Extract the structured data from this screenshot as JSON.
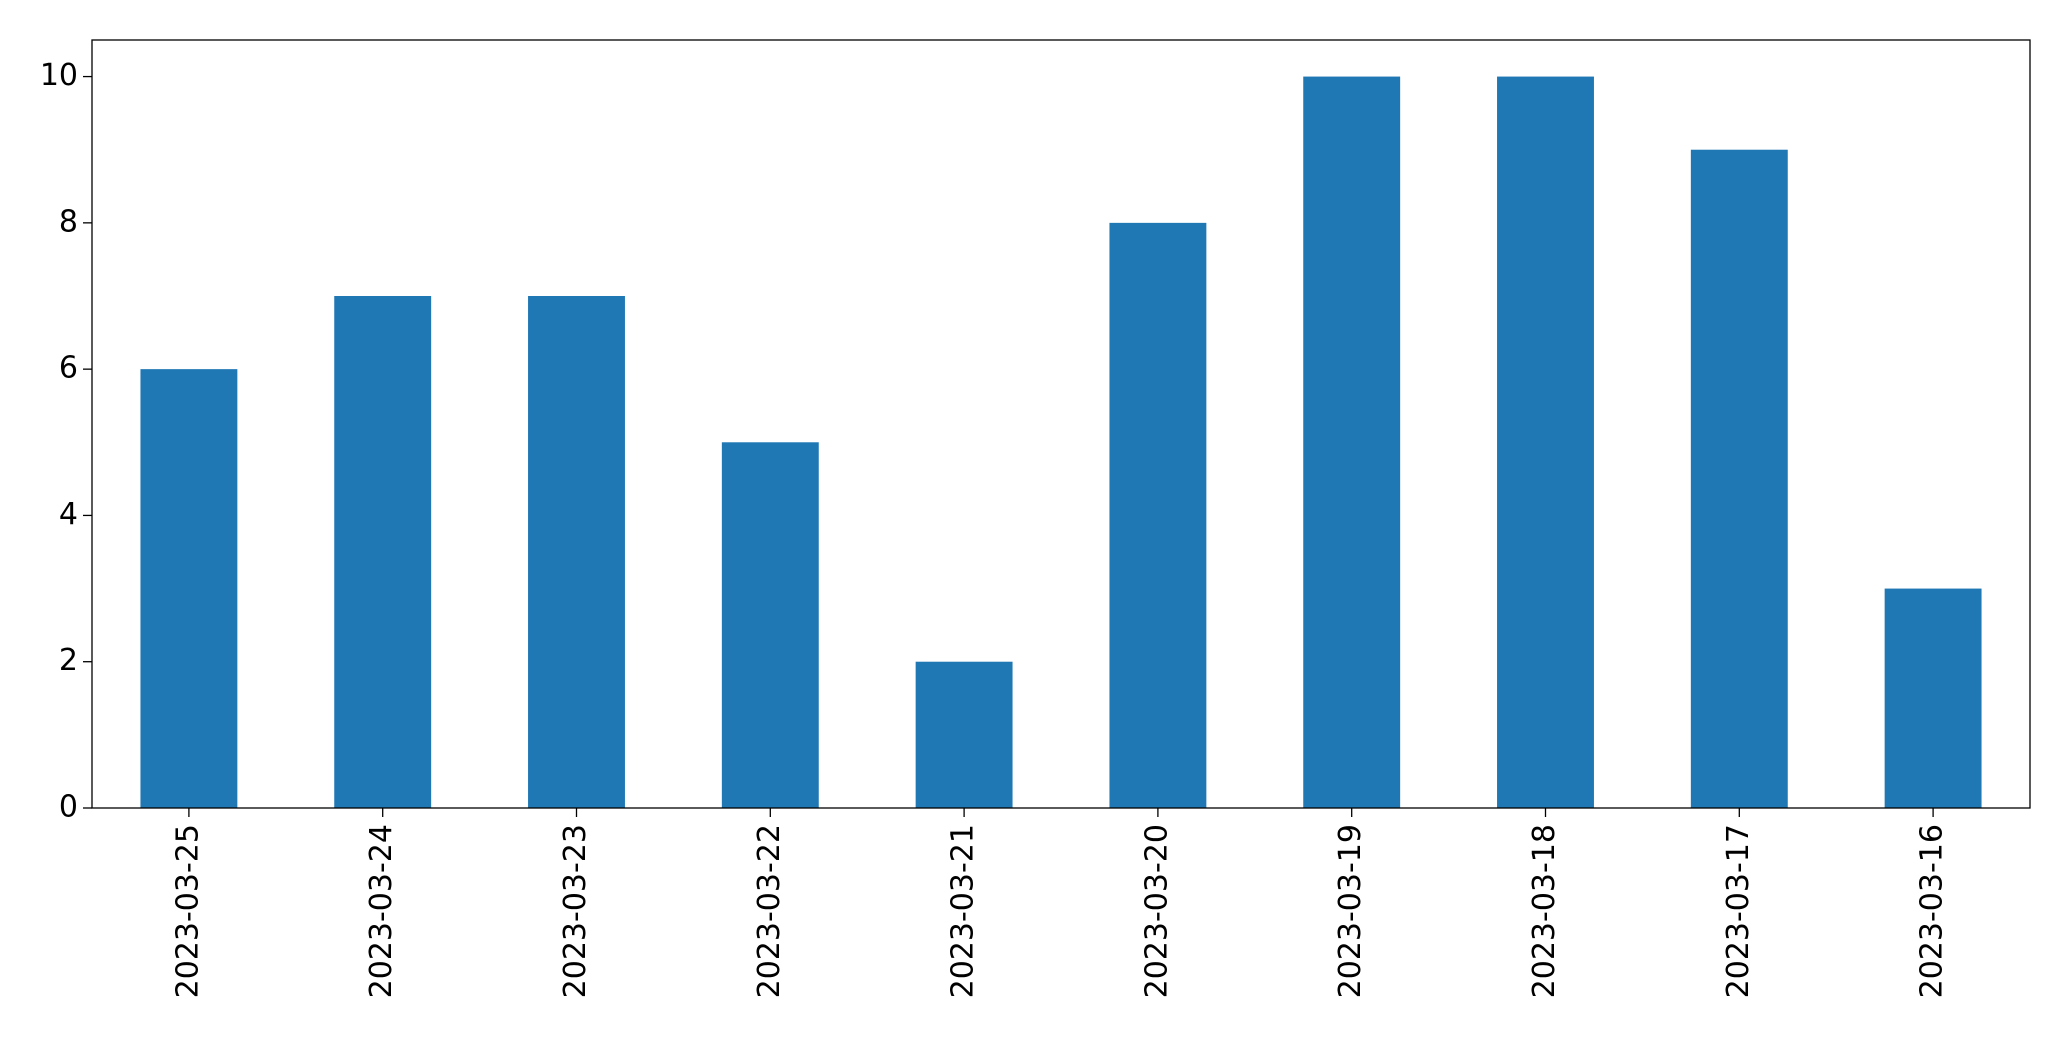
{
  "chart_data": {
    "type": "bar",
    "categories": [
      "2023-03-25",
      "2023-03-24",
      "2023-03-23",
      "2023-03-22",
      "2023-03-21",
      "2023-03-20",
      "2023-03-19",
      "2023-03-18",
      "2023-03-17",
      "2023-03-16"
    ],
    "values": [
      6,
      7,
      7,
      5,
      2,
      8,
      10,
      10,
      9,
      3
    ],
    "color": "#1f77b4",
    "ylim": [
      0,
      10.5
    ],
    "yticks": [
      0,
      2,
      4,
      6,
      8,
      10
    ],
    "grid": false
  }
}
